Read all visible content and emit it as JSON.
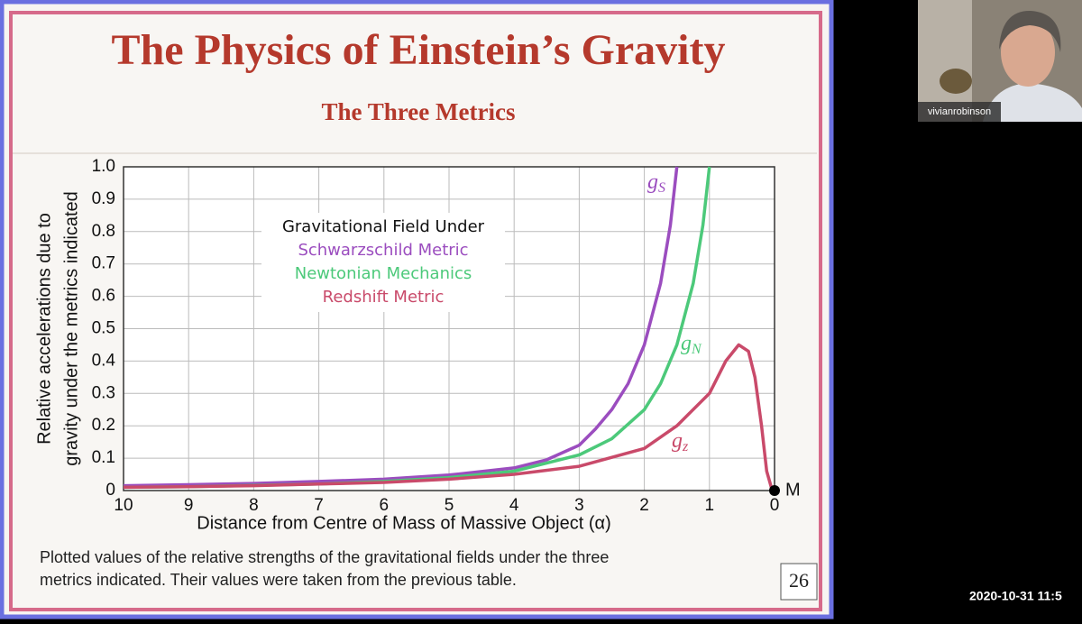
{
  "slide_title": "The Physics of Einstein’s Gravity",
  "subtitle": "The Three Metrics",
  "chart_data": {
    "type": "line",
    "x_label": "Distance from Centre of Mass of Massive Object (α)",
    "y_label": [
      "Relative accelerations due to",
      "gravity under the metrics indicated"
    ],
    "legend_title": "Gravitational Field Under",
    "origin_label": "M",
    "xlim": [
      10,
      0
    ],
    "ylim": [
      0,
      1
    ],
    "xticks": [
      10,
      9,
      8,
      7,
      6,
      5,
      4,
      3,
      2,
      1,
      0
    ],
    "yticks": [
      0,
      0.1,
      0.2,
      0.3,
      0.4,
      0.5,
      0.6,
      0.7,
      0.8,
      0.9,
      {
        "value": 1,
        "label": "1.0"
      }
    ],
    "grid": true,
    "series": [
      {
        "name": "Schwarzschild Metric",
        "color": "#9b4dbf",
        "label": "g",
        "label_sub": "S",
        "x": [
          10,
          9,
          8,
          7,
          6,
          5,
          4,
          3.5,
          3,
          2.75,
          2.5,
          2.25,
          2,
          1.75,
          1.6,
          1.5
        ],
        "values": [
          0.015,
          0.018,
          0.022,
          0.028,
          0.035,
          0.048,
          0.07,
          0.095,
          0.14,
          0.19,
          0.25,
          0.33,
          0.45,
          0.64,
          0.82,
          1.0
        ]
      },
      {
        "name": "Newtonian Mechanics",
        "color": "#4cc97a",
        "label": "g",
        "label_sub": "N",
        "x": [
          10,
          9,
          8,
          7,
          6,
          5,
          4,
          3,
          2.5,
          2,
          1.75,
          1.5,
          1.25,
          1.1,
          1
        ],
        "values": [
          0.01,
          0.012,
          0.016,
          0.02,
          0.028,
          0.04,
          0.06,
          0.11,
          0.16,
          0.25,
          0.33,
          0.45,
          0.64,
          0.82,
          1.0
        ]
      },
      {
        "name": "Redshift Metric",
        "color": "#c94a6a",
        "label": "g",
        "label_sub": "z",
        "x": [
          10,
          9,
          8,
          7,
          6,
          5,
          4,
          3,
          2,
          1.5,
          1,
          0.75,
          0.55,
          0.4,
          0.3,
          0.2,
          0.12,
          0.05,
          0
        ],
        "values": [
          0.01,
          0.012,
          0.015,
          0.02,
          0.025,
          0.035,
          0.05,
          0.075,
          0.13,
          0.2,
          0.3,
          0.4,
          0.45,
          0.43,
          0.35,
          0.2,
          0.06,
          0.01,
          0
        ]
      }
    ]
  },
  "caption": [
    "Plotted values of the relative strengths of the gravitational fields under the three",
    "metrics indicated. Their values were taken from the previous table."
  ],
  "page_number": "26",
  "participant_name": "vivianrobinson",
  "timestamp": "2020-10-31 11:5"
}
